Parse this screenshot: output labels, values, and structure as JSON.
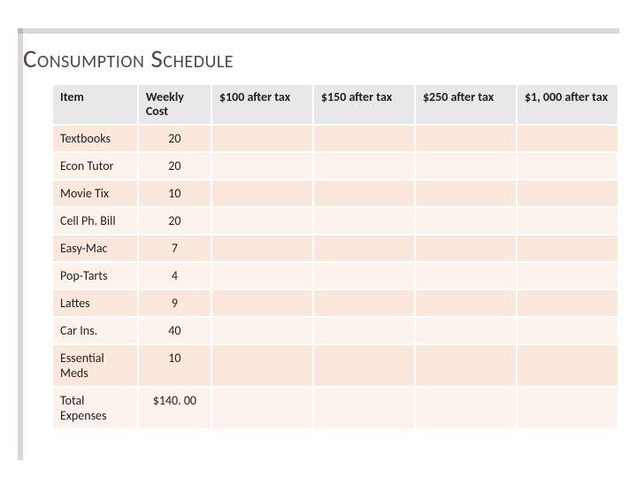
{
  "title": "Consumption Schedule",
  "table": {
    "type": "table",
    "header_bg": "#e8e8e8",
    "band_colors": [
      "#fbe8dc",
      "#fdf3ed"
    ],
    "header_fontsize": 14,
    "header_fontweight": "bold",
    "cell_fontsize": 14,
    "columns": [
      {
        "label": "Item",
        "width_pct": 15,
        "align": "left"
      },
      {
        "label": "Weekly Cost",
        "width_pct": 13,
        "align": "center"
      },
      {
        "label": "$100 after tax",
        "width_pct": 18,
        "align": "left"
      },
      {
        "label": "$150 after tax",
        "width_pct": 18,
        "align": "left"
      },
      {
        "label": "$250 after tax",
        "width_pct": 18,
        "align": "left"
      },
      {
        "label": "$1, 000 after tax",
        "width_pct": 18,
        "align": "left"
      }
    ],
    "rows": [
      {
        "item": "Textbooks",
        "cost": "20",
        "c100": "",
        "c150": "",
        "c250": "",
        "c1000": ""
      },
      {
        "item": "Econ Tutor",
        "cost": "20",
        "c100": "",
        "c150": "",
        "c250": "",
        "c1000": ""
      },
      {
        "item": "Movie Tix",
        "cost": "10",
        "c100": "",
        "c150": "",
        "c250": "",
        "c1000": ""
      },
      {
        "item": "Cell Ph. Bill",
        "cost": "20",
        "c100": "",
        "c150": "",
        "c250": "",
        "c1000": ""
      },
      {
        "item": "Easy-Mac",
        "cost": "7",
        "c100": "",
        "c150": "",
        "c250": "",
        "c1000": ""
      },
      {
        "item": "Pop-Tarts",
        "cost": "4",
        "c100": "",
        "c150": "",
        "c250": "",
        "c1000": ""
      },
      {
        "item": "Lattes",
        "cost": "9",
        "c100": "",
        "c150": "",
        "c250": "",
        "c1000": ""
      },
      {
        "item": "Car Ins.",
        "cost": "40",
        "c100": "",
        "c150": "",
        "c250": "",
        "c1000": ""
      },
      {
        "item": "Essential Meds",
        "cost": "10",
        "c100": "",
        "c150": "",
        "c250": "",
        "c1000": ""
      },
      {
        "item": "Total Expenses",
        "cost": "$140. 00",
        "c100": "",
        "c150": "",
        "c250": "",
        "c1000": ""
      }
    ]
  },
  "colors": {
    "frame": "#6c6055",
    "title_text": "#4a4a4a",
    "page_bg": "#ffffff"
  }
}
